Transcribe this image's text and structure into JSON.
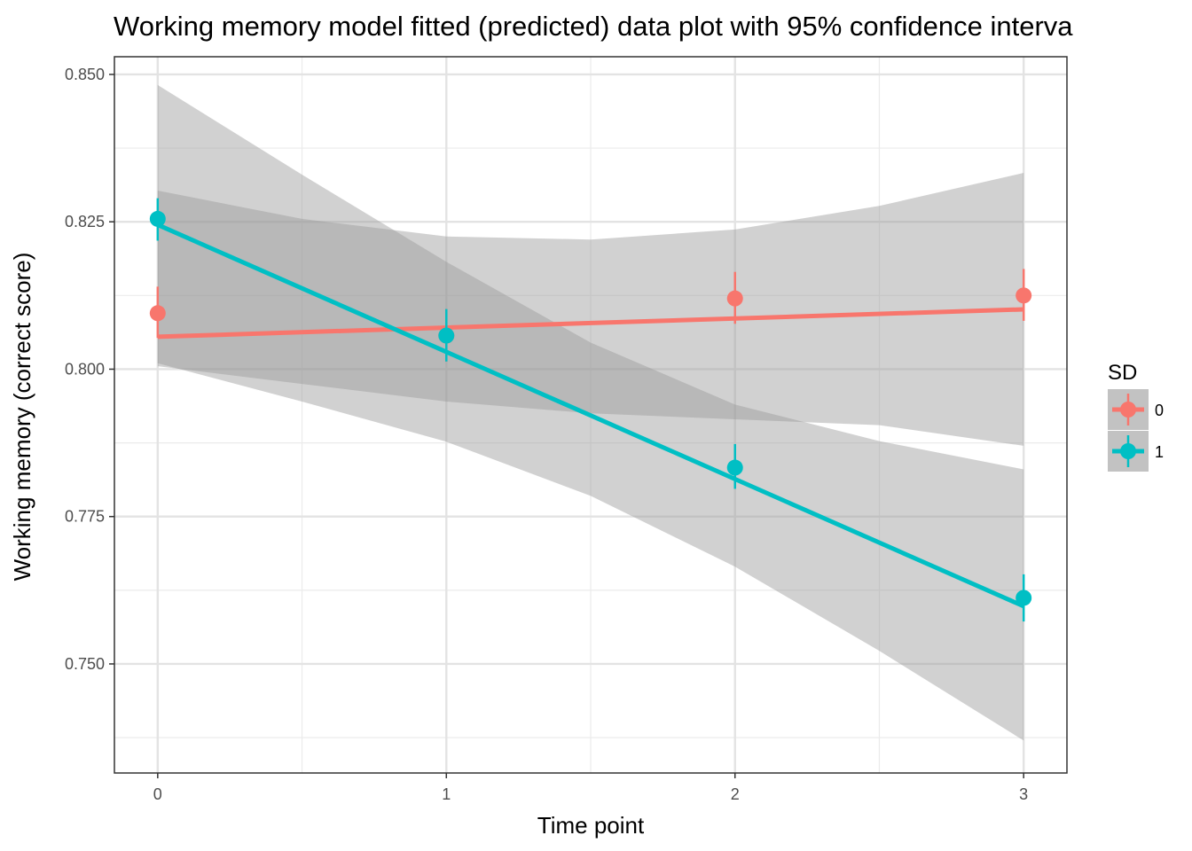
{
  "chart_data": {
    "type": "line",
    "title": "Working memory model fitted (predicted) data plot with 95% confidence interva",
    "xlabel": "Time point",
    "ylabel": "Working memory (correct score)",
    "x_ticks": [
      "0",
      "1",
      "2",
      "3"
    ],
    "y_ticks": [
      "0.750",
      "0.775",
      "0.800",
      "0.825",
      "0.850"
    ],
    "xlim": [
      -0.15,
      3.15
    ],
    "ylim": [
      0.7315,
      0.853
    ],
    "grid": true,
    "legend": {
      "title": "SD",
      "placement": "right"
    },
    "series": [
      {
        "name": "0",
        "color": "#f8766d",
        "points": [
          {
            "x": 0,
            "y": 0.8095,
            "lo": 0.8053,
            "hi": 0.814
          },
          {
            "x": 1,
            "y": 0.8057,
            "lo": 0.8013,
            "hi": 0.8102
          },
          {
            "x": 2,
            "y": 0.812,
            "lo": 0.8077,
            "hi": 0.8165
          },
          {
            "x": 3,
            "y": 0.8125,
            "lo": 0.8082,
            "hi": 0.817
          }
        ],
        "fit": {
          "intercept": 0.8055,
          "slope": 0.00155
        },
        "band": {
          "x": [
            0,
            0.5,
            1,
            1.5,
            2,
            2.5,
            3
          ],
          "lower": [
            0.8005,
            0.7975,
            0.7945,
            0.7925,
            0.7915,
            0.7905,
            0.787
          ],
          "upper": [
            0.8303,
            0.8255,
            0.8225,
            0.822,
            0.8237,
            0.8277,
            0.8333
          ]
        }
      },
      {
        "name": "1",
        "color": "#00bfc4",
        "points": [
          {
            "x": 0,
            "y": 0.8255,
            "lo": 0.8218,
            "hi": 0.829
          },
          {
            "x": 1,
            "y": 0.8057,
            "lo": 0.8013,
            "hi": 0.8102
          },
          {
            "x": 2,
            "y": 0.7833,
            "lo": 0.7797,
            "hi": 0.7873
          },
          {
            "x": 3,
            "y": 0.7612,
            "lo": 0.7572,
            "hi": 0.7652
          }
        ],
        "fit": {
          "intercept": 0.8245,
          "slope": -0.02157
        },
        "band": {
          "x": [
            0,
            0.5,
            1,
            1.5,
            2,
            2.5,
            3
          ],
          "lower": [
            0.801,
            0.7945,
            0.7877,
            0.7785,
            0.7665,
            0.7522,
            0.737
          ],
          "upper": [
            0.8482,
            0.833,
            0.8182,
            0.8045,
            0.794,
            0.7878,
            0.783
          ]
        }
      }
    ]
  }
}
